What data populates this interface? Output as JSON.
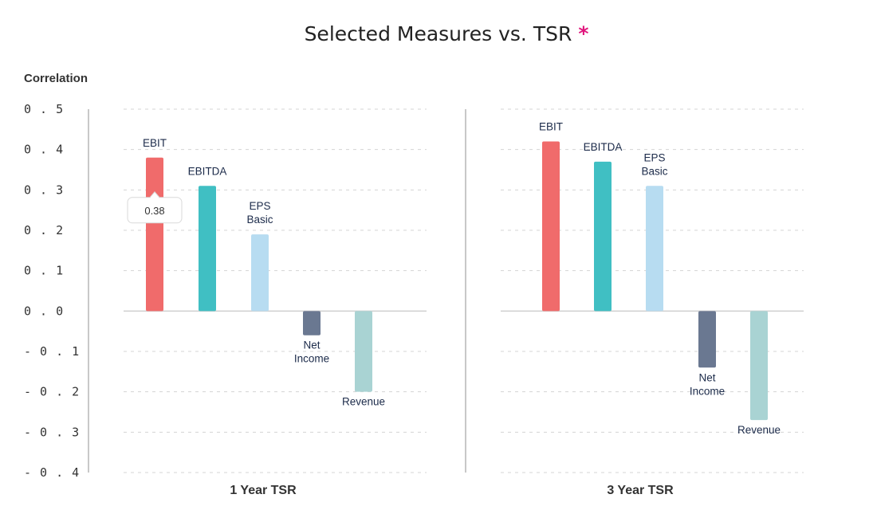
{
  "title": "Selected Measures vs. TSR",
  "title_marker": "*",
  "colors": {
    "asterisk": "#e0157c",
    "EBIT": "#f06b6b",
    "EBITDA": "#40bfc3",
    "EPS Basic": "#b7dcf1",
    "Net Income": "#6a7891",
    "Revenue": "#a9d3d3",
    "grid": "#d4d4d4",
    "axis": "#c8c8c8"
  },
  "chart_data": {
    "type": "bar",
    "ylabel": "Correlation",
    "ylim": [
      -0.4,
      0.5
    ],
    "yticks": [
      "0.5",
      "0.4",
      "0.3",
      "0.2",
      "0.1",
      "0.0",
      "-0.1",
      "-0.2",
      "-0.3",
      "-0.4"
    ],
    "grid": true,
    "categories": [
      "EBIT",
      "EBITDA",
      "EPS Basic",
      "Net Income",
      "Revenue"
    ],
    "panels": [
      {
        "name": "1 Year TSR",
        "values": [
          0.38,
          0.31,
          0.19,
          -0.06,
          -0.2
        ],
        "tooltip": {
          "category": "EBIT",
          "text": "0.38"
        }
      },
      {
        "name": "3 Year TSR",
        "values": [
          0.42,
          0.37,
          0.31,
          -0.14,
          -0.27
        ]
      }
    ]
  }
}
